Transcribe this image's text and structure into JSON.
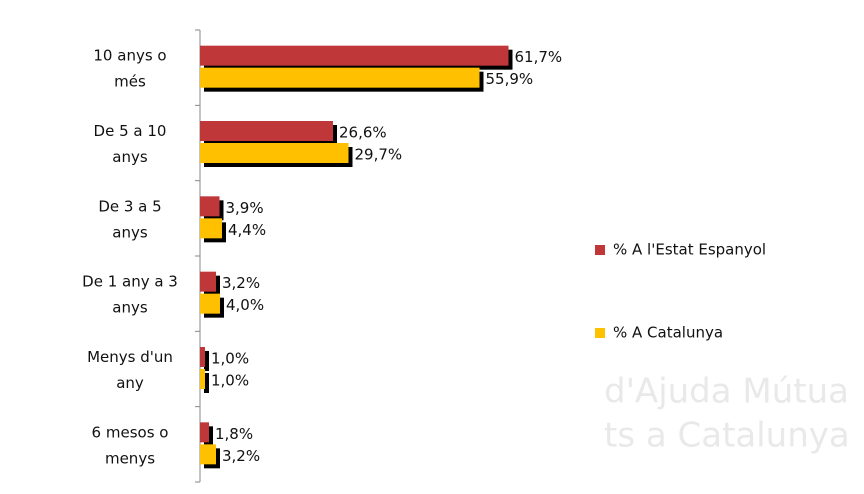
{
  "chart_data": {
    "type": "bar",
    "orientation": "horizontal",
    "categories": [
      "10 anys o més",
      "De 5 a 10 anys",
      "De 3 a 5 anys",
      "De 1 any a 3 anys",
      "Menys d'un any",
      "6 mesos o menys"
    ],
    "series": [
      {
        "name": "% A l'Estat Espanyol",
        "color": "#c0373a",
        "values": [
          61.7,
          26.6,
          3.9,
          3.2,
          1.0,
          1.8
        ],
        "value_labels": [
          "61,7%",
          "26,6%",
          "3,9%",
          "3,2%",
          "1,0%",
          "1,8%"
        ]
      },
      {
        "name": "% A Catalunya",
        "color": "#ffc000",
        "values": [
          55.9,
          29.7,
          4.4,
          4.0,
          1.0,
          3.2
        ],
        "value_labels": [
          "55,9%",
          "29,7%",
          "4,4%",
          "4,0%",
          "1,0%",
          "3,2%"
        ]
      }
    ],
    "xlim": [
      0,
      70
    ],
    "legend": "right"
  },
  "watermark": [
    "d'Ajuda Mútua",
    "ts a Catalunya"
  ]
}
